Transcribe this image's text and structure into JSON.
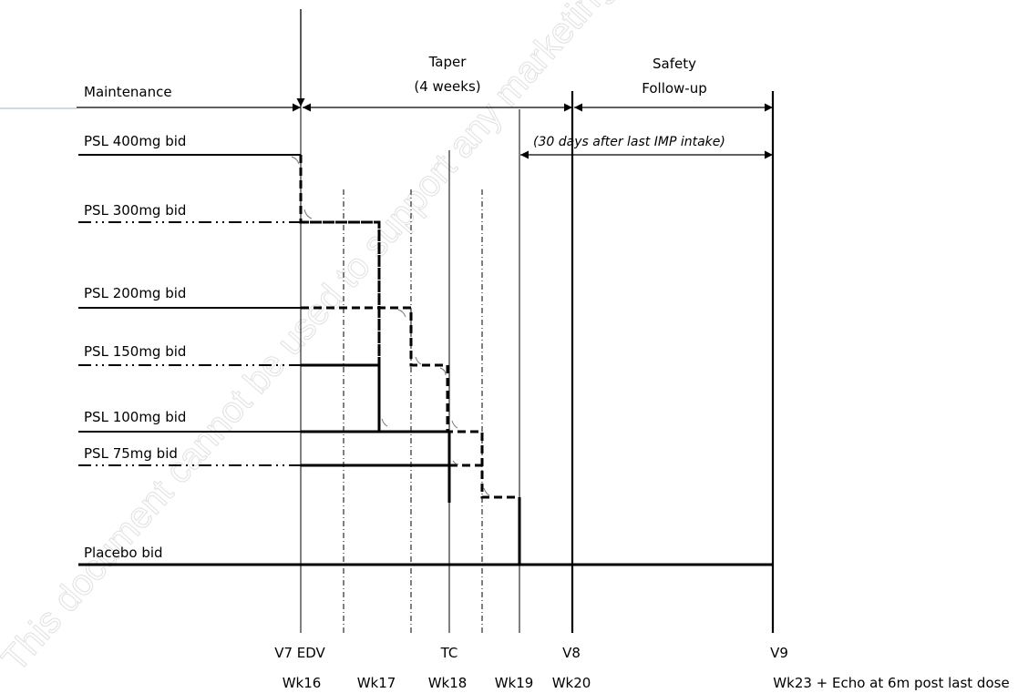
{
  "phases": {
    "maintenance": "Maintenance",
    "taper_line1": "Taper",
    "taper_line2": "(4 weeks)",
    "safety_line1": "Safety",
    "safety_line2": "Follow-up",
    "safety_note": "(30 days after last IMP intake)"
  },
  "doses": [
    "PSL 400mg bid",
    "PSL 300mg bid",
    "PSL 200mg bid",
    "PSL 150mg bid",
    "PSL 100mg bid",
    "PSL 75mg bid",
    "Placebo bid"
  ],
  "visits": {
    "v7": "V7 EDV",
    "tc": "TC",
    "v8": "V8",
    "v9": "V9"
  },
  "weeks": {
    "wk16": "Wk16",
    "wk17": "Wk17",
    "wk18": "Wk18",
    "wk19": "Wk19",
    "wk20": "Wk20",
    "wk23": "Wk23 + Echo at 6m post last dose"
  },
  "watermark": "This document cannot be used to support any marketing authorization application and any extensions or variations thereof. REDACTED COPY"
}
